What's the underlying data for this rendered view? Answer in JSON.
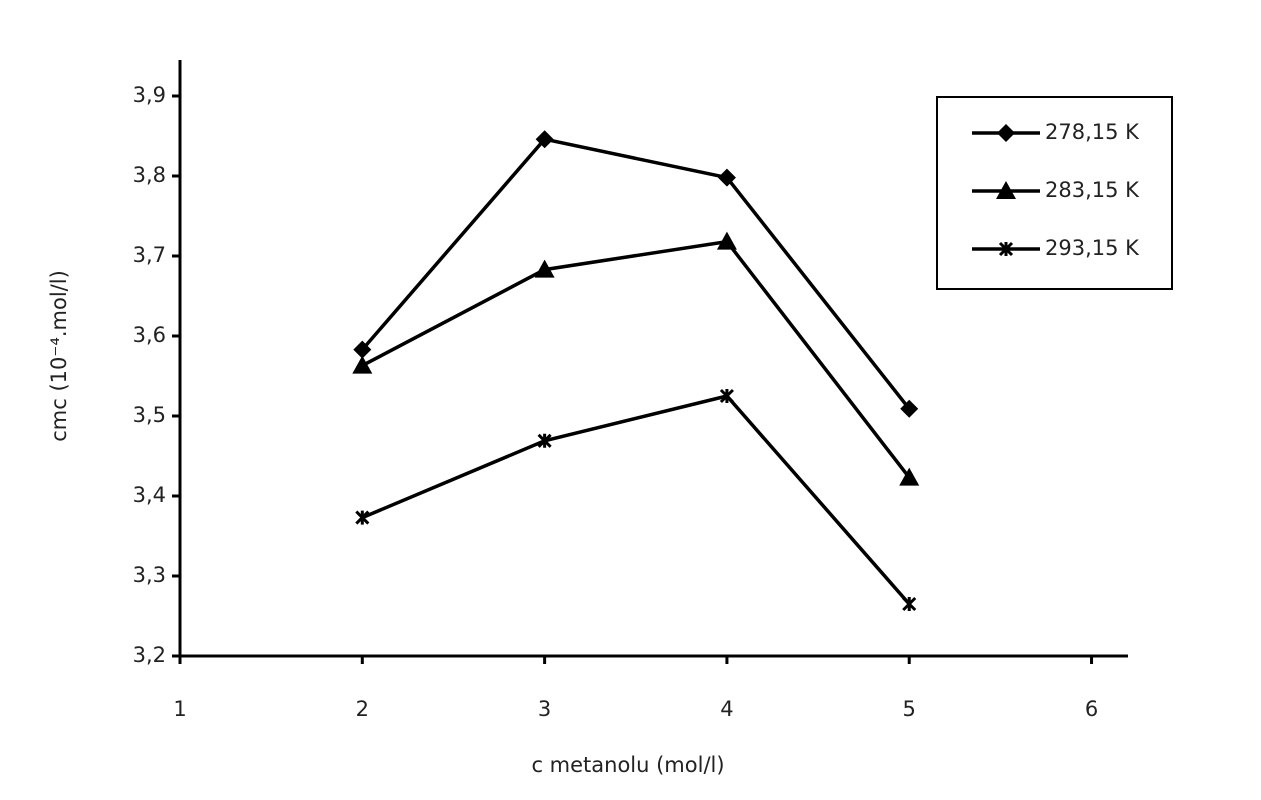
{
  "chart_data": {
    "type": "line",
    "x_label": "c metanolu (mol/l)",
    "y_label": "cmc (10⁻⁴.mol/l)",
    "x": [
      2,
      3,
      4,
      5
    ],
    "series": [
      {
        "name": "278,15 K",
        "color": "#000000",
        "marker": "diamond",
        "values": [
          3.583,
          3.846,
          3.798,
          3.509
        ]
      },
      {
        "name": "283,15 K",
        "color": "#000000",
        "marker": "triangle",
        "values": [
          3.563,
          3.683,
          3.718,
          3.423
        ]
      },
      {
        "name": "293,15 K",
        "color": "#000000",
        "marker": "x",
        "values": [
          3.373,
          3.469,
          3.525,
          3.265
        ]
      }
    ],
    "xlim": [
      1,
      6.2
    ],
    "xticks": [
      1,
      2,
      3,
      4,
      5,
      6
    ],
    "ylim": [
      3.2,
      3.945
    ],
    "yticks": [
      {
        "value": 3.2,
        "label": "3,2"
      },
      {
        "value": 3.3,
        "label": "3,3"
      },
      {
        "value": 3.4,
        "label": "3,4"
      },
      {
        "value": 3.5,
        "label": "3,5"
      },
      {
        "value": 3.6,
        "label": "3,6"
      },
      {
        "value": 3.7,
        "label": "3,7"
      },
      {
        "value": 3.8,
        "label": "3,8"
      },
      {
        "value": 3.9,
        "label": "3,9"
      }
    ],
    "grid": false,
    "legend": "upper right"
  }
}
